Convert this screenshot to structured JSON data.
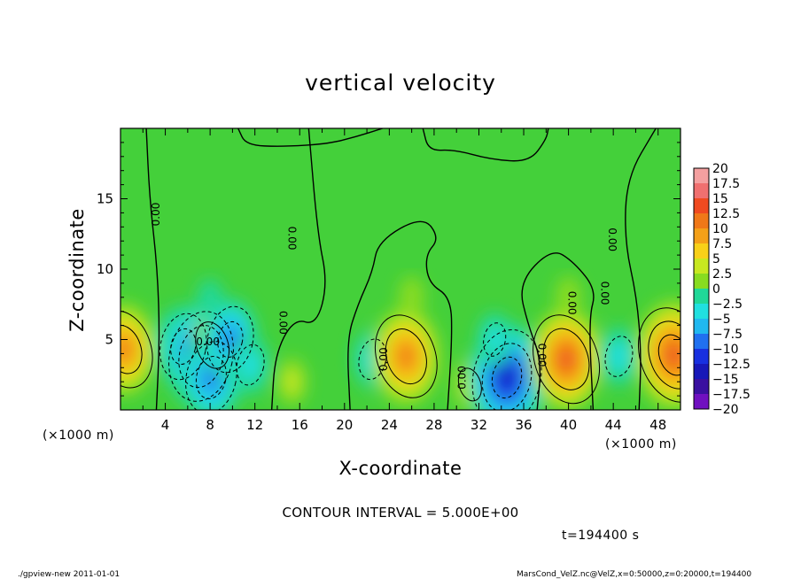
{
  "chart_data": {
    "type": "heatmap",
    "title": "vertical velocity",
    "xlabel": "X-coordinate",
    "ylabel": "Z-coordinate",
    "x_unit": "(×1000 m)",
    "y_unit": "(×1000 m)",
    "xlim": [
      0,
      50
    ],
    "ylim": [
      0,
      20
    ],
    "x_ticks": [
      4,
      8,
      12,
      16,
      20,
      24,
      28,
      32,
      36,
      40,
      44,
      48
    ],
    "y_ticks": [
      5,
      10,
      15
    ],
    "colorbar": {
      "levels": [
        20,
        17.5,
        15,
        12.5,
        10,
        7.5,
        5,
        2.5,
        0,
        -2.5,
        -5,
        -7.5,
        -10,
        -12.5,
        -15,
        -17.5,
        -20
      ],
      "labels": [
        "20",
        "17.5",
        "15",
        "12.5",
        "10",
        "7.5",
        "5",
        "2.5",
        "0",
        "−2.5",
        "−5",
        "−7.5",
        "−10",
        "−12.5",
        "−15",
        "−17.5",
        "−20"
      ],
      "colors": [
        "#f4a0a0",
        "#f07070",
        "#f04a20",
        "#f07818",
        "#f4a018",
        "#f8d018",
        "#c8e820",
        "#88dc20",
        "#40d030",
        "#20d898",
        "#20e0e0",
        "#20b8f0",
        "#2070f0",
        "#1830e0",
        "#1818b8",
        "#3a10a0",
        "#7010c0"
      ]
    },
    "features": [
      {
        "x": 0.3,
        "z": 4.3,
        "w": 12
      },
      {
        "x": 5.6,
        "z": 4.5,
        "w": -10
      },
      {
        "x": 7.2,
        "z": 3.8,
        "w": -14
      },
      {
        "x": 8.2,
        "z": 4.6,
        "w": 7
      },
      {
        "x": 8.1,
        "z": 2.3,
        "w": -11
      },
      {
        "x": 9.8,
        "z": 5.0,
        "w": -10
      },
      {
        "x": 11.6,
        "z": 3.2,
        "w": -6
      },
      {
        "x": 15.3,
        "z": 2.0,
        "w": 4
      },
      {
        "x": 22.5,
        "z": 3.6,
        "w": -6
      },
      {
        "x": 25.5,
        "z": 3.8,
        "w": 13
      },
      {
        "x": 31.2,
        "z": 1.8,
        "w": 5
      },
      {
        "x": 34.5,
        "z": 2.3,
        "w": -15
      },
      {
        "x": 33.4,
        "z": 5.0,
        "w": -5
      },
      {
        "x": 39.8,
        "z": 3.6,
        "w": 14
      },
      {
        "x": 44.5,
        "z": 3.8,
        "w": -6
      },
      {
        "x": 49.4,
        "z": 3.9,
        "w": 15
      },
      {
        "x": 8.0,
        "z": 7.8,
        "w": -3
      },
      {
        "x": 26.0,
        "z": 8.0,
        "w": 3
      },
      {
        "x": 40.0,
        "z": 8.0,
        "w": 3
      }
    ]
  },
  "contour_labels": [
    "0.00",
    "0.00",
    "0.00",
    "0.00",
    "0.00",
    "0.00",
    "0.00",
    "0.00",
    "0.00",
    "0.00"
  ],
  "contour_interval_text": "CONTOUR INTERVAL = 5.000E+00",
  "time_text": "t=194400 s",
  "footer_left": "./gpview-new  2011-01-01",
  "footer_right": "MarsCond_VelZ.nc@VelZ,x=0:50000,z=0:20000,t=194400"
}
